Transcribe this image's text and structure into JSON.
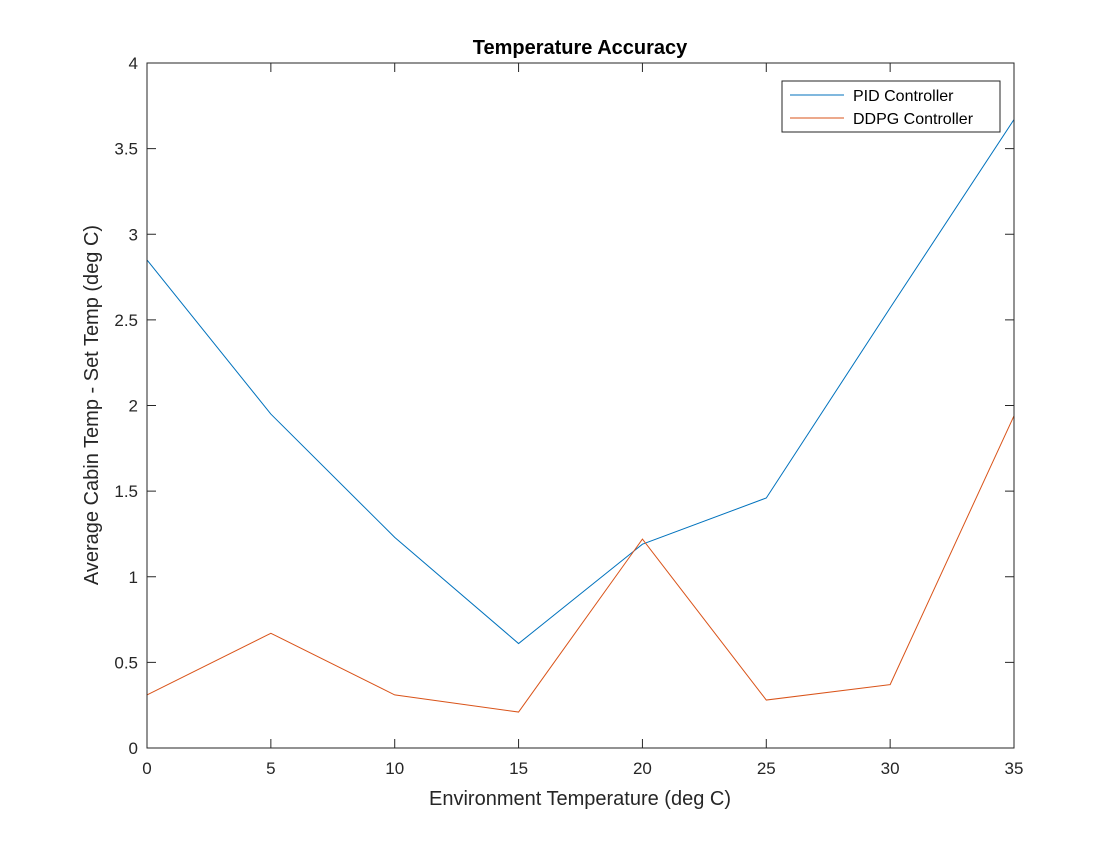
{
  "chart_data": {
    "type": "line",
    "title": "Temperature Accuracy",
    "xlabel": "Environment Temperature (deg C)",
    "ylabel": "Average Cabin Temp - Set Temp (deg C)",
    "x": [
      0,
      5,
      10,
      15,
      20,
      25,
      30,
      35
    ],
    "series": [
      {
        "name": "PID Controller",
        "color": "#0072BD",
        "values": [
          2.85,
          1.95,
          1.23,
          0.61,
          1.19,
          1.46,
          2.57,
          3.67
        ]
      },
      {
        "name": "DDPG Controller",
        "color": "#D95319",
        "values": [
          0.31,
          0.67,
          0.31,
          0.21,
          1.22,
          0.28,
          0.37,
          1.94
        ]
      }
    ],
    "xlim": [
      0,
      35
    ],
    "ylim": [
      0,
      4
    ],
    "xticks": [
      "0",
      "5",
      "10",
      "15",
      "20",
      "25",
      "30",
      "35"
    ],
    "yticks": [
      "0",
      "0.5",
      "1",
      "1.5",
      "2",
      "2.5",
      "3",
      "3.5",
      "4"
    ],
    "grid": false,
    "legend_position": "top-right"
  }
}
